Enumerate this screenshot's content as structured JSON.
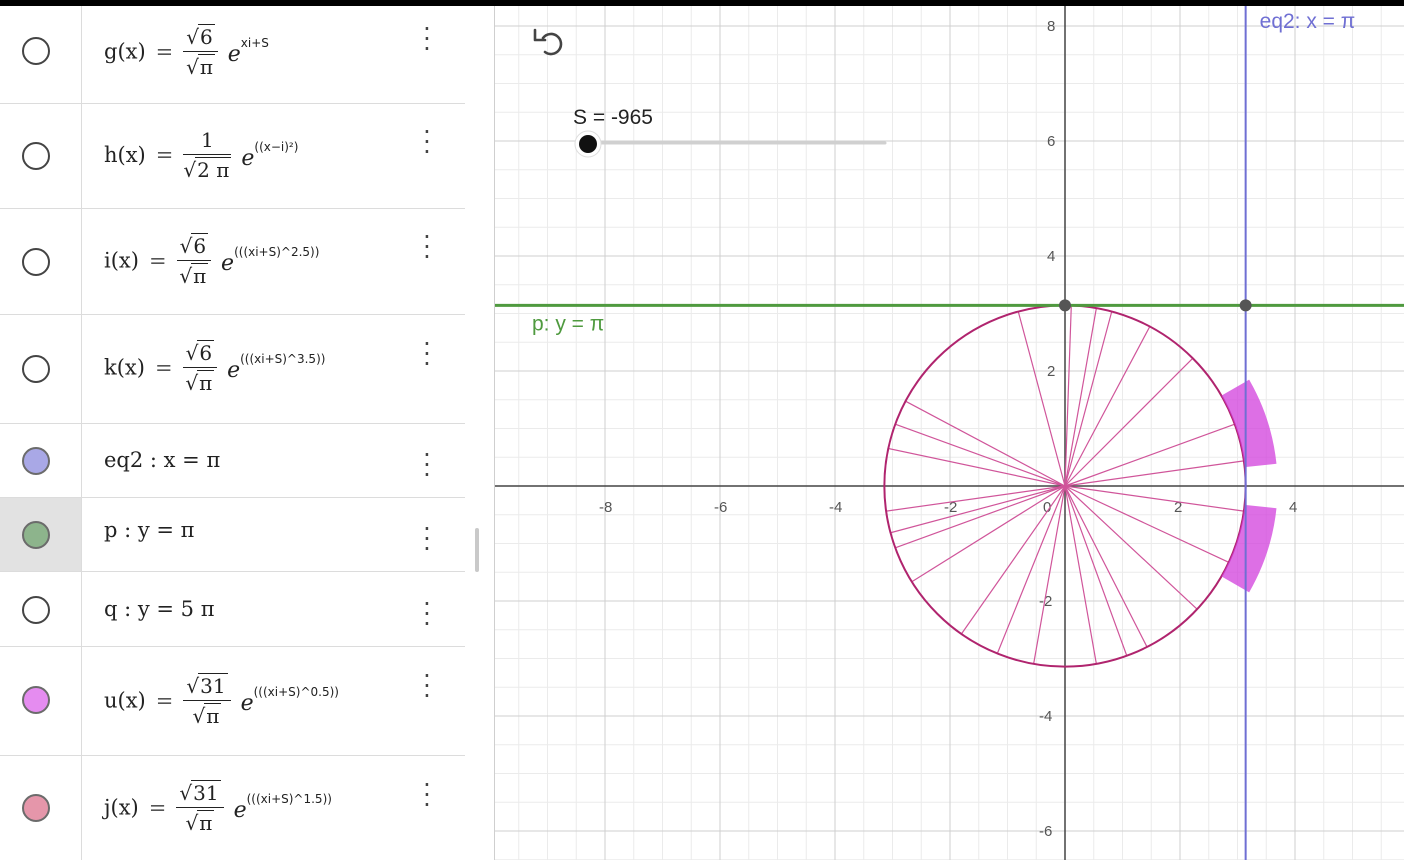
{
  "algebra": {
    "rows": [
      {
        "id": "g",
        "lhs": "g(x)",
        "num": "6",
        "den": "π",
        "num_sqrt": true,
        "den_sqrt": true,
        "exp": "xi+S",
        "visible": false,
        "color": "#444444"
      },
      {
        "id": "h",
        "lhs": "h(x)",
        "num": "1",
        "den": "2 π",
        "num_sqrt": false,
        "den_sqrt": true,
        "exp": "((x−i)²)",
        "visible": false,
        "color": "#444444"
      },
      {
        "id": "i",
        "lhs": "i(x)",
        "num": "6",
        "den": "π",
        "num_sqrt": true,
        "den_sqrt": true,
        "exp": "(((xi+S)^2.5))",
        "visible": false,
        "color": "#444444"
      },
      {
        "id": "k",
        "lhs": "k(x)",
        "num": "6",
        "den": "π",
        "num_sqrt": true,
        "den_sqrt": true,
        "exp": "(((xi+S)^3.5))",
        "visible": false,
        "color": "#444444"
      },
      {
        "id": "eq2",
        "text": "eq2 : x = π",
        "visible": true,
        "color": "#a9a8e6"
      },
      {
        "id": "p",
        "text": "p : y = π",
        "visible": true,
        "color": "#8db48c",
        "selected": true
      },
      {
        "id": "q",
        "text": "q : y = 5 π",
        "visible": false,
        "color": "#444444"
      },
      {
        "id": "u",
        "lhs": "u(x)",
        "num": "31",
        "den": "π",
        "num_sqrt": true,
        "den_sqrt": true,
        "exp": "(((xi+S)^0.5))",
        "visible": true,
        "color": "#e58cf0"
      },
      {
        "id": "j",
        "lhs": "j(x)",
        "num": "31",
        "den": "π",
        "num_sqrt": true,
        "den_sqrt": true,
        "exp": "(((xi+S)^1.5))",
        "visible": true,
        "color": "#e596aa"
      }
    ],
    "menu_glyph": "⋮"
  },
  "graphics": {
    "slider": {
      "label": "S = -965",
      "value": -965
    },
    "undo_icon": "undo-icon",
    "labels": {
      "eq2": "eq2: x = π",
      "p": "p: y = π"
    },
    "colors": {
      "eq2": "#6f6fd3",
      "p": "#4f9a3f",
      "circle": "#b0246e",
      "rays": "#d0559a",
      "sector": "#d23fdc"
    },
    "x_ticks": [
      "-8",
      "-6",
      "-4",
      "-2",
      "0",
      "2",
      "4"
    ],
    "y_ticks": [
      "8",
      "6",
      "4",
      "2",
      "-2",
      "-4",
      "-6"
    ]
  }
}
